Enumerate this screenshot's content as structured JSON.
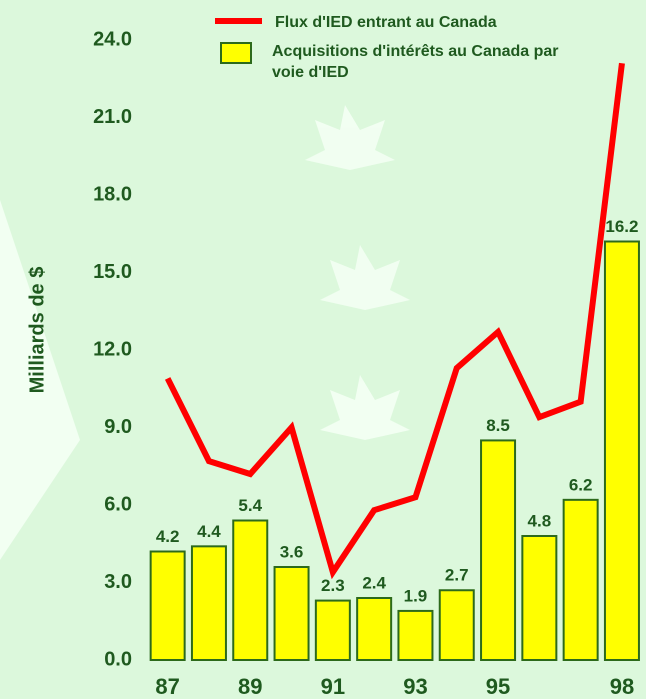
{
  "chart_data": {
    "type": "bar",
    "y_label": "Milliards de $",
    "categories": [
      "87",
      null,
      "89",
      null,
      "91",
      null,
      "93",
      null,
      "95",
      null,
      null,
      "98"
    ],
    "series": [
      {
        "name": "Flux d'IED entrant au Canada",
        "type": "line",
        "color": "#ff0000",
        "values": [
          10.9,
          7.7,
          7.2,
          9.0,
          3.4,
          5.8,
          6.3,
          11.3,
          12.7,
          9.4,
          10.0,
          23.1
        ]
      },
      {
        "name": "Acquisitions d'intérêts au Canada par voie d'IED",
        "type": "bar",
        "color": "#ffff00",
        "values": [
          4.2,
          4.4,
          5.4,
          3.6,
          2.3,
          2.4,
          1.9,
          2.7,
          8.5,
          4.8,
          6.2,
          16.2
        ]
      }
    ],
    "ylim": [
      0,
      24
    ],
    "yticks": [
      {
        "value": 0,
        "label": "0.0"
      },
      {
        "value": 3,
        "label": "3.0"
      },
      {
        "value": 6,
        "label": "6.0"
      },
      {
        "value": 9,
        "label": "9.0"
      },
      {
        "value": 12,
        "label": "12.0"
      },
      {
        "value": 15,
        "label": "15.0"
      },
      {
        "value": 18,
        "label": "18.0"
      },
      {
        "value": 21,
        "label": "21.0"
      },
      {
        "value": 24,
        "label": "24.0"
      }
    ]
  }
}
